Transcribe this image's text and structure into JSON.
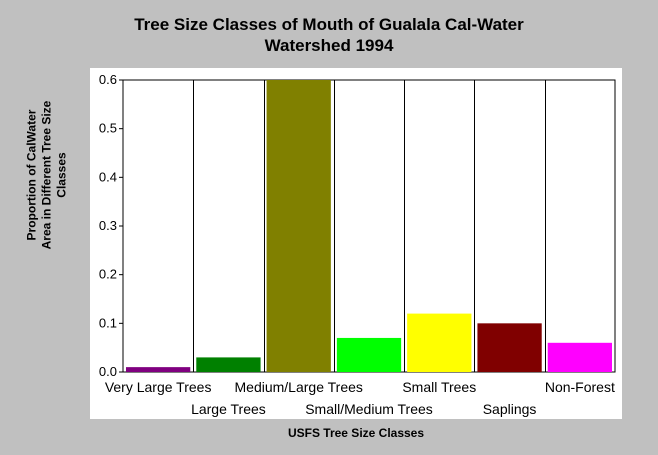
{
  "chart_data": {
    "type": "bar",
    "title_lines": [
      "Tree Size Classes of Mouth of Gualala Cal-Water",
      "Watershed 1994"
    ],
    "xlabel": "USFS Tree Size Classes",
    "ylabel_lines": [
      "Proportion of CalWater",
      "Area in Different Tree Size",
      "Classes"
    ],
    "categories": [
      "Very Large Trees",
      "Large Trees",
      "Medium/Large Trees",
      "Small/Medium Trees",
      "Small Trees",
      "Saplings",
      "Non-Forest"
    ],
    "values": [
      0.01,
      0.03,
      0.6,
      0.07,
      0.12,
      0.1,
      0.06
    ],
    "colors": [
      "#800080",
      "#008000",
      "#808000",
      "#00ff00",
      "#ffff00",
      "#800000",
      "#ff00ff"
    ],
    "ylim": [
      0,
      0.6
    ],
    "yticks": [
      "0.0",
      "0.1",
      "0.2",
      "0.3",
      "0.4",
      "0.5",
      "0.6"
    ],
    "grid": true,
    "legend": "none"
  }
}
